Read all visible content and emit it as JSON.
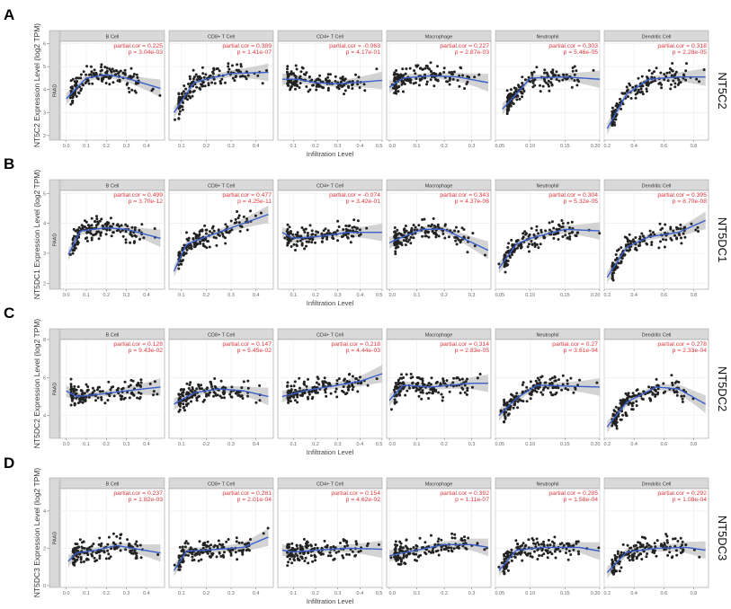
{
  "chart_data": {
    "type": "scatter",
    "shared": {
      "cancer": "PAAD",
      "xlabel": "Infiltration Level",
      "panels": [
        "B Cell",
        "CD8+ T Cell",
        "CD4+ T Cell",
        "Macrophage",
        "Neutrophil",
        "Dendritic Cell"
      ],
      "xlim": [
        [
          -0.03,
          0.49
        ],
        [
          0.05,
          0.47
        ],
        [
          0.03,
          0.5
        ],
        [
          -0.01,
          0.37
        ],
        [
          0.05,
          0.2
        ],
        [
          0.2,
          0.9
        ]
      ],
      "xticks": [
        [
          "0.0",
          "0.1",
          "0.2",
          "0.3",
          "0.4"
        ],
        [
          "0.1",
          "0.2",
          "0.3",
          "0.4"
        ],
        [
          "0.1",
          "0.2",
          "0.3",
          "0.4",
          "0.5"
        ],
        [
          "0.0",
          "0.1",
          "0.2",
          "0.3"
        ],
        [
          "0.05",
          "0.10",
          "0.15",
          "0.20"
        ],
        [
          "0.2",
          "0.4",
          "0.6",
          "0.8"
        ]
      ],
      "colors": {
        "point": "#222222",
        "trend": "#3a5fcd",
        "band": "#c8c8c8",
        "stat": "#e0383e",
        "strip": "#d9d9d9"
      },
      "grid": true
    },
    "rows": [
      {
        "letter": "A",
        "gene": "NT5C2",
        "ylabel": "NT5C2 Expression Level (log2 TPM)",
        "ylim": [
          1.8,
          6.1
        ],
        "yticks": [
          "2",
          "3",
          "4",
          "5",
          "6"
        ],
        "stats": [
          [
            "0.225",
            "3.04e-03"
          ],
          [
            "0.389",
            "1.41e-07"
          ],
          [
            "-0.063",
            "4.17e-01"
          ],
          [
            "0.227",
            "2.87e-03"
          ],
          [
            "0.303",
            "5.46e-05"
          ],
          [
            "0.318",
            "2.28e-05"
          ]
        ],
        "trend": [
          [
            [
              0,
              3.6
            ],
            [
              0.1,
              4.5
            ],
            [
              0.2,
              4.65
            ],
            [
              0.3,
              4.5
            ],
            [
              0.47,
              4.05
            ]
          ],
          [
            [
              0.07,
              3.0
            ],
            [
              0.15,
              4.3
            ],
            [
              0.2,
              4.45
            ],
            [
              0.3,
              4.7
            ],
            [
              0.45,
              4.75
            ]
          ],
          [
            [
              0.05,
              4.45
            ],
            [
              0.12,
              4.45
            ],
            [
              0.2,
              4.3
            ],
            [
              0.3,
              4.25
            ],
            [
              0.5,
              4.4
            ]
          ],
          [
            [
              0,
              4.1
            ],
            [
              0.05,
              4.5
            ],
            [
              0.15,
              4.6
            ],
            [
              0.25,
              4.55
            ],
            [
              0.36,
              4.3
            ]
          ],
          [
            [
              0.06,
              3.15
            ],
            [
              0.08,
              3.8
            ],
            [
              0.1,
              4.5
            ],
            [
              0.15,
              4.55
            ],
            [
              0.2,
              4.45
            ]
          ],
          [
            [
              0.22,
              2.3
            ],
            [
              0.35,
              3.8
            ],
            [
              0.5,
              4.45
            ],
            [
              0.7,
              4.55
            ],
            [
              0.88,
              4.55
            ]
          ]
        ]
      },
      {
        "letter": "B",
        "gene": "NT5DC1",
        "ylabel": "NT5DC1 Expression Level (log2 TPM)",
        "ylim": [
          1.8,
          5.1
        ],
        "yticks": [
          "2",
          "3",
          "4",
          "5"
        ],
        "stats": [
          [
            "0.499",
            "3.70e-12"
          ],
          [
            "0.477",
            "4.25e-11"
          ],
          [
            "-0.074",
            "3.42e-01"
          ],
          [
            "0.343",
            "4.37e-06"
          ],
          [
            "0.304",
            "5.32e-05"
          ],
          [
            "0.395",
            "8.70e-08"
          ]
        ],
        "trend": [
          [
            [
              0.01,
              2.95
            ],
            [
              0.07,
              3.75
            ],
            [
              0.2,
              3.85
            ],
            [
              0.3,
              3.8
            ],
            [
              0.47,
              3.5
            ]
          ],
          [
            [
              0.07,
              2.4
            ],
            [
              0.12,
              3.3
            ],
            [
              0.2,
              3.55
            ],
            [
              0.3,
              3.85
            ],
            [
              0.45,
              4.3
            ]
          ],
          [
            [
              0.05,
              3.7
            ],
            [
              0.1,
              3.5
            ],
            [
              0.2,
              3.55
            ],
            [
              0.35,
              3.7
            ],
            [
              0.5,
              3.7
            ]
          ],
          [
            [
              0,
              3.35
            ],
            [
              0.05,
              3.55
            ],
            [
              0.12,
              3.8
            ],
            [
              0.2,
              3.8
            ],
            [
              0.36,
              3.1
            ]
          ],
          [
            [
              0.055,
              2.5
            ],
            [
              0.08,
              3.3
            ],
            [
              0.1,
              3.5
            ],
            [
              0.15,
              3.8
            ],
            [
              0.2,
              3.75
            ]
          ],
          [
            [
              0.22,
              2.2
            ],
            [
              0.35,
              3.2
            ],
            [
              0.5,
              3.55
            ],
            [
              0.7,
              3.7
            ],
            [
              0.88,
              4.1
            ]
          ]
        ]
      },
      {
        "letter": "C",
        "gene": "NT5DC2",
        "ylabel": "NT5DC2 Expression Level (log2 TPM)",
        "ylim": [
          2.8,
          8
        ],
        "yticks": [
          "4",
          "6",
          "8"
        ],
        "stats": [
          [
            "0.128",
            "9.43e-02"
          ],
          [
            "0.147",
            "5.45e-02"
          ],
          [
            "0.218",
            "4.44e-03"
          ],
          [
            "0.314",
            "2.83e-05"
          ],
          [
            "0.27",
            "3.61e-04"
          ],
          [
            "0.278",
            "2.33e-04"
          ]
        ],
        "trend": [
          [
            [
              0,
              5.3
            ],
            [
              0.05,
              5.0
            ],
            [
              0.15,
              5.1
            ],
            [
              0.3,
              5.3
            ],
            [
              0.47,
              5.5
            ]
          ],
          [
            [
              0.07,
              4.6
            ],
            [
              0.15,
              5.2
            ],
            [
              0.25,
              5.4
            ],
            [
              0.35,
              5.3
            ],
            [
              0.45,
              5.0
            ]
          ],
          [
            [
              0.05,
              5.0
            ],
            [
              0.15,
              5.3
            ],
            [
              0.25,
              5.5
            ],
            [
              0.4,
              5.8
            ],
            [
              0.5,
              6.2
            ]
          ],
          [
            [
              0,
              4.8
            ],
            [
              0.05,
              5.6
            ],
            [
              0.15,
              5.5
            ],
            [
              0.3,
              5.7
            ],
            [
              0.36,
              5.7
            ]
          ],
          [
            [
              0.055,
              4.0
            ],
            [
              0.08,
              4.9
            ],
            [
              0.11,
              5.6
            ],
            [
              0.15,
              5.55
            ],
            [
              0.2,
              5.5
            ]
          ],
          [
            [
              0.22,
              3.4
            ],
            [
              0.35,
              4.7
            ],
            [
              0.55,
              5.5
            ],
            [
              0.7,
              5.4
            ],
            [
              0.88,
              4.6
            ]
          ]
        ]
      },
      {
        "letter": "D",
        "gene": "NT5DC3",
        "ylabel": "NT5DC3 Expression Level (log2 TPM)",
        "ylim": [
          -0.1,
          5.2
        ],
        "yticks": [
          "0",
          "2",
          "4"
        ],
        "stats": [
          [
            "0.237",
            "1.82e-03"
          ],
          [
            "0.281",
            "2.01e-04"
          ],
          [
            "0.154",
            "4.62e-02"
          ],
          [
            "0.392",
            "1.11e-07"
          ],
          [
            "0.285",
            "1.58e-04"
          ],
          [
            "0.292",
            "1.08e-04"
          ]
        ],
        "trend": [
          [
            [
              0.01,
              1.3
            ],
            [
              0.05,
              1.75
            ],
            [
              0.15,
              1.9
            ],
            [
              0.25,
              2.15
            ],
            [
              0.47,
              1.75
            ]
          ],
          [
            [
              0.07,
              0.8
            ],
            [
              0.12,
              1.85
            ],
            [
              0.2,
              1.9
            ],
            [
              0.35,
              2.05
            ],
            [
              0.45,
              2.6
            ]
          ],
          [
            [
              0.05,
              1.9
            ],
            [
              0.1,
              1.8
            ],
            [
              0.2,
              1.9
            ],
            [
              0.35,
              2.0
            ],
            [
              0.5,
              1.95
            ]
          ],
          [
            [
              0,
              1.6
            ],
            [
              0.1,
              1.9
            ],
            [
              0.2,
              2.2
            ],
            [
              0.3,
              2.2
            ],
            [
              0.36,
              2.05
            ]
          ],
          [
            [
              0.055,
              0.8
            ],
            [
              0.08,
              1.9
            ],
            [
              0.12,
              2.05
            ],
            [
              0.17,
              2.05
            ],
            [
              0.2,
              1.85
            ]
          ],
          [
            [
              0.22,
              0.7
            ],
            [
              0.35,
              1.8
            ],
            [
              0.55,
              2.0
            ],
            [
              0.75,
              2.05
            ],
            [
              0.88,
              1.9
            ]
          ]
        ]
      }
    ]
  }
}
